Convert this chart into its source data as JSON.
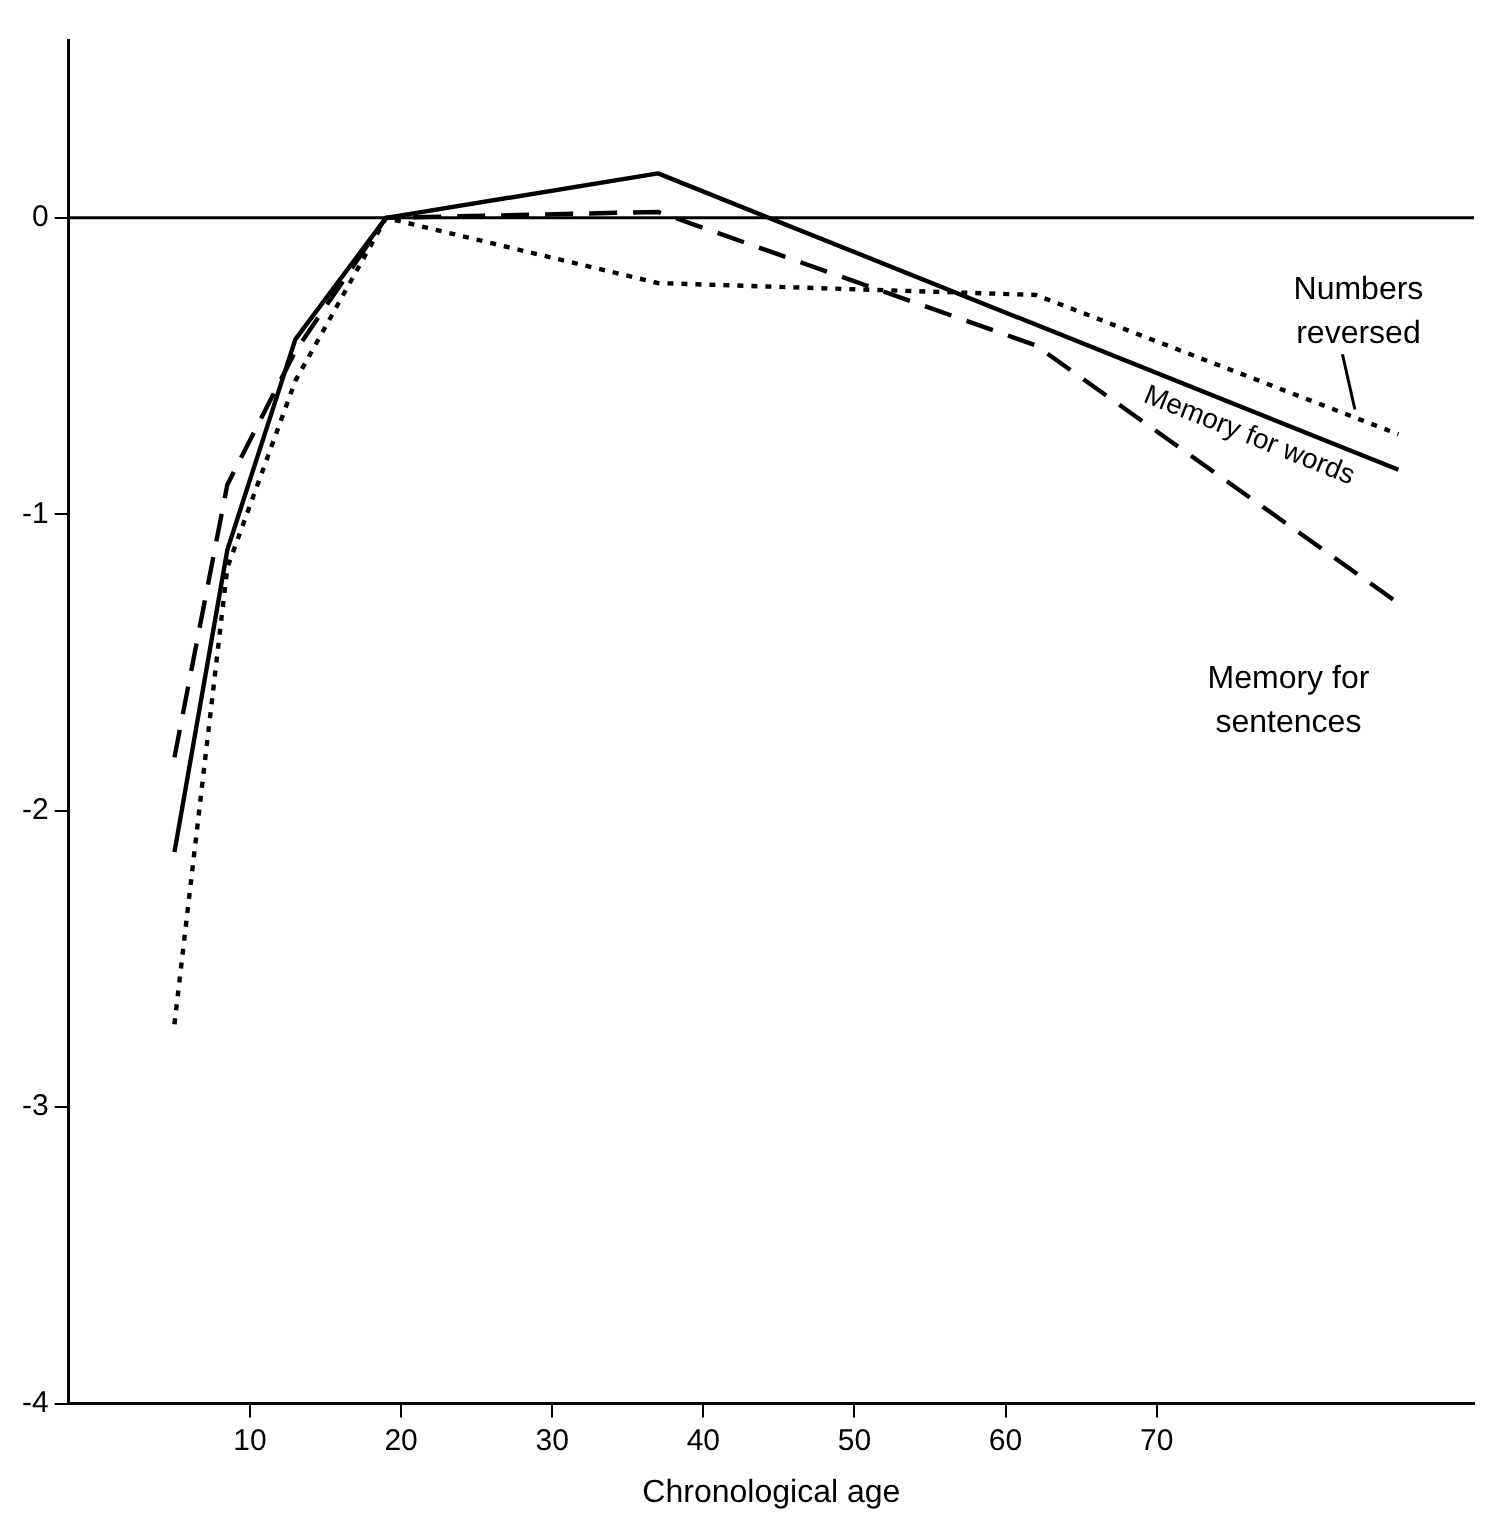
{
  "chart_data": {
    "type": "line",
    "xlabel": "Chronological age",
    "xlim": [
      -2,
      91
    ],
    "xticks": [
      10,
      20,
      30,
      40,
      50,
      60,
      70
    ],
    "ylim": [
      -4,
      0.6
    ],
    "yticks": [
      0,
      -1,
      -2,
      -3,
      -4
    ],
    "grid": false,
    "legend": false,
    "marker": "none",
    "ref_lines": [
      {
        "axis": "y",
        "value": 0,
        "color": "#000000"
      }
    ],
    "series": [
      {
        "name": "Memory for words",
        "color": "#000000",
        "line_style": "solid",
        "x": [
          5,
          8.5,
          13,
          19,
          37,
          86
        ],
        "values": [
          -2.14,
          -1.12,
          -0.41,
          0,
          0.15,
          -0.85
        ]
      },
      {
        "name": "Memory for sentences",
        "color": "#000000",
        "line_style": "dashed",
        "x": [
          5,
          8.5,
          13,
          19,
          37,
          62,
          86
        ],
        "values": [
          -1.82,
          -0.9,
          -0.45,
          0,
          0.02,
          -0.43,
          -1.3
        ]
      },
      {
        "name": "Numbers reversed",
        "color": "#000000",
        "line_style": "dotted",
        "x": [
          5,
          8.5,
          13,
          19,
          37,
          62,
          86
        ],
        "values": [
          -2.72,
          -1.18,
          -0.55,
          0,
          -0.22,
          -0.26,
          -0.73
        ]
      }
    ]
  }
}
